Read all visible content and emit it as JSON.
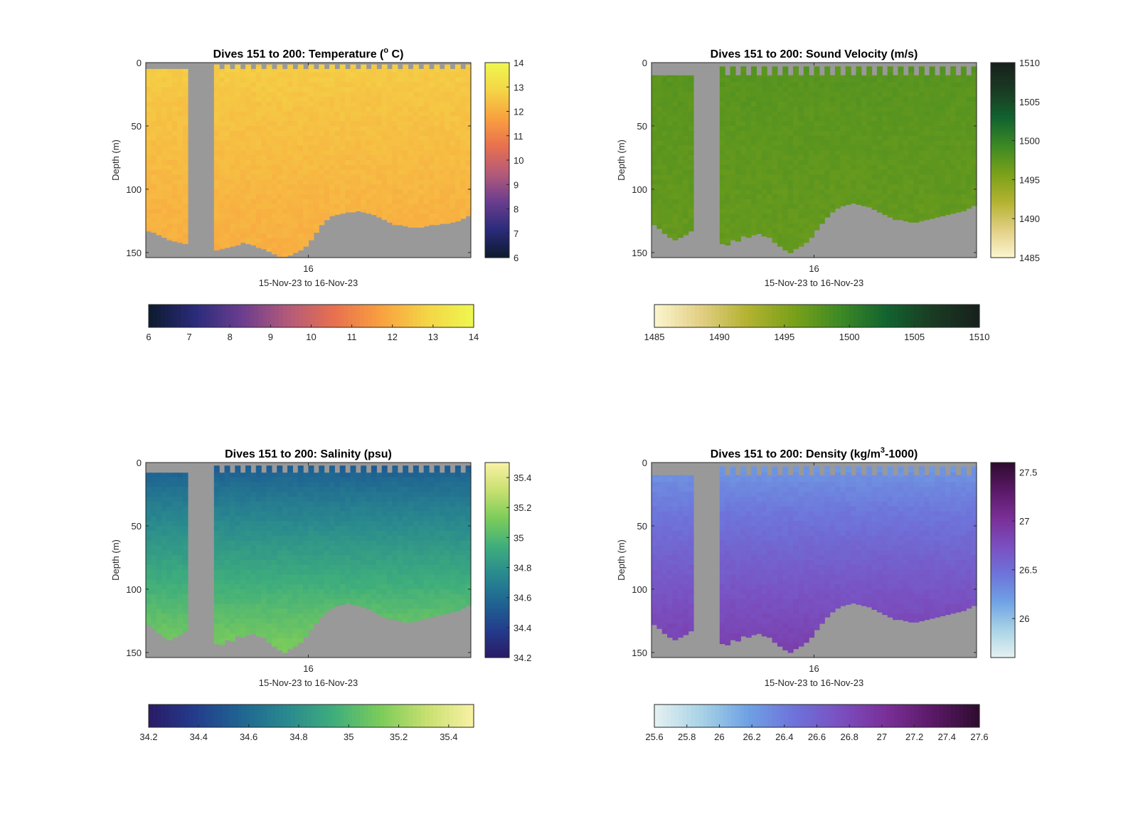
{
  "figure": {
    "background": "#ffffff",
    "nodata_color": "#999999"
  },
  "chart_data": [
    {
      "id": "temperature",
      "type": "heatmap",
      "title": "Dives 151 to 200: Temperature (° C)",
      "title_main": "Dives 151 to 200: Temperature (",
      "title_sup": "o",
      "title_tail": " C)",
      "xlabel": "15-Nov-23 to 16-Nov-23",
      "ylabel": "Depth (m)",
      "xtick_labels": [
        "16"
      ],
      "ylim": [
        0,
        154
      ],
      "yticks": [
        0,
        50,
        100,
        150
      ],
      "clim": [
        6,
        14
      ],
      "colorbar_right_ticks": [
        "6",
        "7",
        "8",
        "9",
        "10",
        "11",
        "12",
        "13",
        "14"
      ],
      "colorbar_right_values": [
        6,
        7,
        8,
        9,
        10,
        11,
        12,
        13,
        14
      ],
      "colorbar_bottom_ticks": [
        "6",
        "7",
        "8",
        "9",
        "10",
        "11",
        "12",
        "13",
        "14"
      ],
      "colorbar_bottom_values": [
        6,
        7,
        8,
        9,
        10,
        11,
        12,
        13,
        14
      ],
      "colormap": [
        "#0d1a2e",
        "#2a2b7a",
        "#6a3d8f",
        "#b35a7a",
        "#e8704f",
        "#f9a03f",
        "#f4d546",
        "#eef750"
      ],
      "surface_value": 12.7,
      "deep_value": 12.0,
      "gap_columns": [
        8,
        13
      ],
      "surface_gap_depth": 5,
      "column_bottoms": [
        133,
        134,
        136,
        138,
        140,
        141,
        142,
        143,
        0,
        0,
        0,
        0,
        0,
        148,
        147,
        146,
        145,
        144,
        142,
        143,
        144,
        146,
        147,
        149,
        151,
        153,
        153,
        152,
        150,
        148,
        145,
        140,
        134,
        128,
        124,
        121,
        120,
        119,
        118,
        118,
        117,
        118,
        119,
        120,
        122,
        124,
        126,
        128,
        128,
        129,
        130,
        130,
        130,
        129,
        128,
        128,
        127,
        127,
        126,
        125,
        123,
        121
      ]
    },
    {
      "id": "sound_velocity",
      "type": "heatmap",
      "title": "Dives 151 to 200: Sound Velocity (m/s)",
      "title_main": "Dives 151 to 200: Sound Velocity (m/s)",
      "title_sup": "",
      "title_tail": "",
      "xlabel": "15-Nov-23 to 16-Nov-23",
      "ylabel": "Depth (m)",
      "xtick_labels": [
        "16"
      ],
      "ylim": [
        0,
        154
      ],
      "yticks": [
        0,
        50,
        100,
        150
      ],
      "clim": [
        1485,
        1510
      ],
      "colorbar_right_ticks": [
        "1485",
        "1490",
        "1495",
        "1500",
        "1505",
        "1510"
      ],
      "colorbar_right_values": [
        1485,
        1490,
        1495,
        1500,
        1505,
        1510
      ],
      "colorbar_bottom_ticks": [
        "1485",
        "1490",
        "1495",
        "1500",
        "1505",
        "1510"
      ],
      "colorbar_bottom_values": [
        1485,
        1490,
        1495,
        1500,
        1505,
        1510
      ],
      "colormap": [
        "#fbf6d0",
        "#e2cf84",
        "#b3b230",
        "#7aa11a",
        "#3d8a24",
        "#12632f",
        "#1a3b23",
        "#17201c"
      ],
      "surface_value": 1497.8,
      "deep_value": 1496.9,
      "gap_columns": [
        8,
        13
      ],
      "surface_gap_depth": 10,
      "column_bottoms": [
        128,
        131,
        135,
        138,
        140,
        138,
        136,
        133,
        0,
        0,
        0,
        0,
        0,
        143,
        144,
        140,
        141,
        137,
        138,
        136,
        135,
        137,
        138,
        142,
        145,
        148,
        150,
        147,
        145,
        142,
        138,
        132,
        127,
        122,
        118,
        115,
        113,
        112,
        111,
        112,
        113,
        114,
        116,
        118,
        120,
        122,
        124,
        124,
        125,
        126,
        126,
        125,
        124,
        123,
        122,
        121,
        120,
        119,
        118,
        117,
        115,
        113
      ]
    },
    {
      "id": "salinity",
      "type": "heatmap",
      "title": "Dives 151 to 200: Salinity (psu)",
      "title_main": "Dives 151 to 200: Salinity (psu)",
      "title_sup": "",
      "title_tail": "",
      "xlabel": "15-Nov-23 to 16-Nov-23",
      "ylabel": "Depth (m)",
      "xtick_labels": [
        "16"
      ],
      "ylim": [
        0,
        154
      ],
      "yticks": [
        0,
        50,
        100,
        150
      ],
      "clim": [
        34.2,
        35.5
      ],
      "colorbar_right_ticks": [
        "34.2",
        "34.4",
        "34.6",
        "34.8",
        "35",
        "35.2",
        "35.4"
      ],
      "colorbar_right_values": [
        34.2,
        34.4,
        34.6,
        34.8,
        35,
        35.2,
        35.4
      ],
      "colorbar_bottom_ticks": [
        "34.2",
        "34.4",
        "34.6",
        "34.8",
        "35",
        "35.2",
        "35.4"
      ],
      "colorbar_bottom_values": [
        34.2,
        34.4,
        34.6,
        34.8,
        35,
        35.2,
        35.4
      ],
      "colormap": [
        "#2a1a66",
        "#233d8c",
        "#1f6592",
        "#2a8a8e",
        "#3fae7c",
        "#7ccc5a",
        "#c8e070",
        "#f9f1a4"
      ],
      "surface_value": 34.5,
      "deep_value": 35.15,
      "gap_columns": [
        8,
        13
      ],
      "surface_gap_depth": 8,
      "column_bottoms": [
        128,
        131,
        135,
        138,
        140,
        138,
        136,
        133,
        0,
        0,
        0,
        0,
        0,
        143,
        144,
        140,
        141,
        137,
        138,
        136,
        135,
        137,
        138,
        142,
        145,
        148,
        150,
        147,
        145,
        142,
        138,
        132,
        127,
        122,
        118,
        115,
        113,
        112,
        111,
        112,
        113,
        114,
        116,
        118,
        120,
        122,
        124,
        124,
        125,
        126,
        126,
        125,
        124,
        123,
        122,
        121,
        120,
        119,
        118,
        117,
        115,
        113
      ]
    },
    {
      "id": "density",
      "type": "heatmap",
      "title": "Dives 151 to 200: Density (kg/m³-1000)",
      "title_main": "Dives 151 to 200: Density (kg/m",
      "title_sup": "3",
      "title_tail": "-1000)",
      "xlabel": "15-Nov-23 to 16-Nov-23",
      "ylabel": "Depth (m)",
      "xtick_labels": [
        "16"
      ],
      "ylim": [
        0,
        154
      ],
      "yticks": [
        0,
        50,
        100,
        150
      ],
      "clim": [
        25.6,
        27.6
      ],
      "colorbar_right_ticks": [
        "26",
        "26.5",
        "27",
        "27.5"
      ],
      "colorbar_right_values": [
        26,
        26.5,
        27,
        27.5
      ],
      "colorbar_bottom_ticks": [
        "25.6",
        "25.8",
        "26",
        "26.2",
        "26.4",
        "26.6",
        "26.8",
        "27",
        "27.2",
        "27.4",
        "27.6"
      ],
      "colorbar_bottom_values": [
        25.6,
        25.8,
        26,
        26.2,
        26.4,
        26.6,
        26.8,
        27,
        27.2,
        27.4,
        27.6
      ],
      "colormap": [
        "#e6f1f2",
        "#a8d3e6",
        "#6fa2e4",
        "#6e73da",
        "#7a4fc0",
        "#7a2f97",
        "#5a1966",
        "#2e0b2e"
      ],
      "surface_value": 26.2,
      "deep_value": 26.9,
      "gap_columns": [
        8,
        13
      ],
      "surface_gap_depth": 10,
      "column_bottoms": [
        128,
        131,
        135,
        138,
        140,
        138,
        136,
        133,
        0,
        0,
        0,
        0,
        0,
        143,
        144,
        140,
        141,
        137,
        138,
        136,
        135,
        137,
        138,
        142,
        145,
        148,
        150,
        147,
        145,
        142,
        138,
        132,
        127,
        122,
        118,
        115,
        113,
        112,
        111,
        112,
        113,
        114,
        116,
        118,
        120,
        122,
        124,
        124,
        125,
        126,
        126,
        125,
        124,
        123,
        122,
        121,
        120,
        119,
        118,
        117,
        115,
        113
      ]
    }
  ]
}
